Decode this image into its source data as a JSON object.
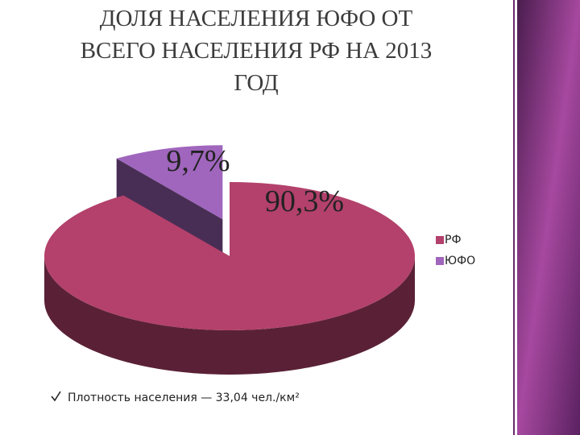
{
  "chart_data": {
    "type": "pie3d",
    "title": [
      "ДОЛЯ НАСЕЛЕНИЯ ЮФО ОТ",
      "ВСЕГО НАСЕЛЕНИЯ РФ НА 2013",
      "ГОД"
    ],
    "categories": [
      "РФ",
      "ЮФО"
    ],
    "values": [
      90.3,
      9.7
    ],
    "value_labels": [
      "90,3%",
      "9,7%"
    ],
    "colors": [
      "#b3416b",
      "#a066bd"
    ],
    "legend": "right"
  },
  "note": "Плотность населения — 33,04 чел./км²"
}
